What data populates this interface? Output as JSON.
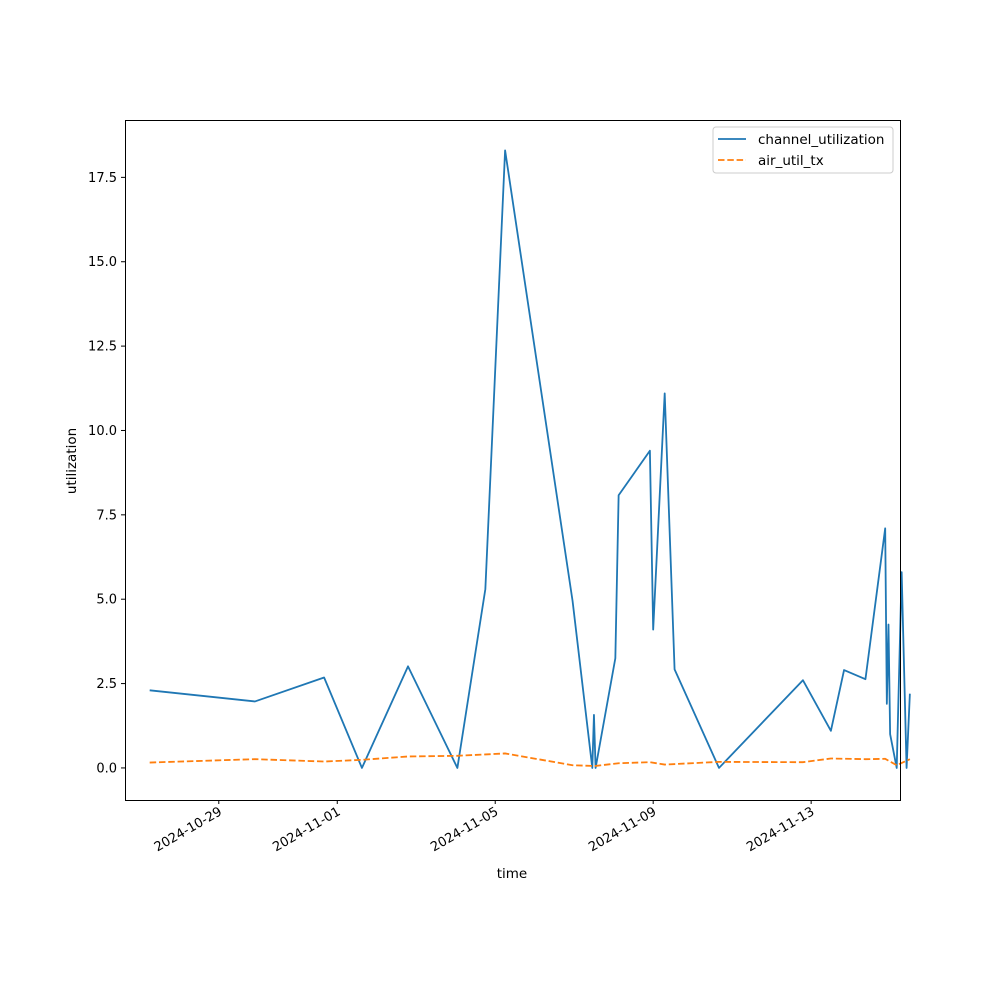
{
  "chart_data": {
    "type": "line",
    "title": "",
    "xlabel": "time",
    "ylabel": "utilization",
    "x_ticks": [
      "2024-10-29",
      "2024-11-01",
      "2024-11-05",
      "2024-11-09",
      "2024-11-13"
    ],
    "y_ticks": [
      "0.0",
      "2.5",
      "5.0",
      "7.5",
      "10.0",
      "12.5",
      "15.0",
      "17.5"
    ],
    "xlim": [
      "2024-10-26T15:00",
      "2024-11-15T06:00"
    ],
    "ylim": [
      -0.95,
      19.2
    ],
    "grid": false,
    "legend_position": "top-right",
    "series": [
      {
        "name": "channel_utilization",
        "color": "#1f77b4",
        "linestyle": "solid",
        "points": [
          [
            "2024-10-27T06:00",
            2.3
          ],
          [
            "2024-10-29T22:00",
            1.97
          ],
          [
            "2024-10-31T16:00",
            2.68
          ],
          [
            "2024-11-01T15:00",
            0.0
          ],
          [
            "2024-11-02T19:00",
            3.01
          ],
          [
            "2024-11-04T01:00",
            0.0
          ],
          [
            "2024-11-04T18:00",
            5.3
          ],
          [
            "2024-11-05T06:00",
            18.3
          ],
          [
            "2024-11-06T23:00",
            4.95
          ],
          [
            "2024-11-07T11:00",
            0.0
          ],
          [
            "2024-11-07T12:00",
            1.57
          ],
          [
            "2024-11-07T13:00",
            0.0
          ],
          [
            "2024-11-08T01:00",
            3.25
          ],
          [
            "2024-11-08T03:00",
            8.08
          ],
          [
            "2024-11-08T22:00",
            9.4
          ],
          [
            "2024-11-09T00:00",
            4.1
          ],
          [
            "2024-11-09T07:00",
            11.1
          ],
          [
            "2024-11-09T13:00",
            2.92
          ],
          [
            "2024-11-10T16:00",
            0.0
          ],
          [
            "2024-11-12T19:00",
            2.6
          ],
          [
            "2024-11-13T12:00",
            1.1
          ],
          [
            "2024-11-13T20:00",
            2.9
          ],
          [
            "2024-11-14T09:00",
            2.63
          ],
          [
            "2024-11-14T21:00",
            7.1
          ],
          [
            "2024-11-14T22:00",
            1.9
          ],
          [
            "2024-11-14T23:00",
            4.25
          ],
          [
            "2024-11-15T00:00",
            1.0
          ],
          [
            "2024-11-15T04:00",
            0.0
          ],
          [
            "2024-11-15T07:00",
            5.8
          ],
          [
            "2024-11-15T10:00",
            0.0
          ],
          [
            "2024-11-15T12:00",
            2.2
          ]
        ]
      },
      {
        "name": "air_util_tx",
        "color": "#ff7f0e",
        "linestyle": "dashed",
        "points": [
          [
            "2024-10-27T06:00",
            0.16
          ],
          [
            "2024-10-29T22:00",
            0.26
          ],
          [
            "2024-10-31T16:00",
            0.19
          ],
          [
            "2024-11-01T15:00",
            0.24
          ],
          [
            "2024-11-02T19:00",
            0.34
          ],
          [
            "2024-11-04T01:00",
            0.36
          ],
          [
            "2024-11-04T18:00",
            0.4
          ],
          [
            "2024-11-05T06:00",
            0.43
          ],
          [
            "2024-11-06T23:00",
            0.08
          ],
          [
            "2024-11-07T11:00",
            0.06
          ],
          [
            "2024-11-07T13:00",
            0.06
          ],
          [
            "2024-11-08T03:00",
            0.14
          ],
          [
            "2024-11-08T22:00",
            0.17
          ],
          [
            "2024-11-09T07:00",
            0.1
          ],
          [
            "2024-11-10T16:00",
            0.18
          ],
          [
            "2024-11-12T19:00",
            0.17
          ],
          [
            "2024-11-13T12:00",
            0.28
          ],
          [
            "2024-11-14T09:00",
            0.26
          ],
          [
            "2024-11-14T21:00",
            0.27
          ],
          [
            "2024-11-15T04:00",
            0.08
          ],
          [
            "2024-11-15T12:00",
            0.26
          ]
        ]
      }
    ]
  }
}
